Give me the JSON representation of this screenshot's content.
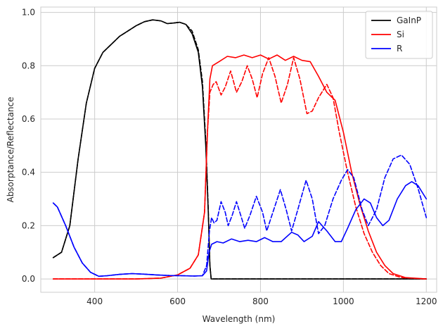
{
  "chart_data": {
    "type": "line",
    "xlabel": "Wavelength (nm)",
    "ylabel": "Absorptance/Reflectance",
    "xlim": [
      270,
      1225
    ],
    "ylim": [
      -0.05,
      1.02
    ],
    "xticks": [
      400,
      600,
      800,
      1000,
      1200
    ],
    "yticks": [
      0.0,
      0.2,
      0.4,
      0.6,
      0.8,
      1.0
    ],
    "xtick_labels": [
      "400",
      "600",
      "800",
      "1000",
      "1200"
    ],
    "ytick_labels": [
      "0.0",
      "0.2",
      "0.4",
      "0.6",
      "0.8",
      "1.0"
    ],
    "grid": true,
    "legend_position": "top-right",
    "legend": [
      {
        "label": "GaInP",
        "color": "#000000"
      },
      {
        "label": "Si",
        "color": "#ff0000"
      },
      {
        "label": "R",
        "color": "#0000ff"
      }
    ],
    "series": [
      {
        "name": "GaInP",
        "color": "#000000",
        "style": "solid",
        "points": [
          [
            300,
            0.08
          ],
          [
            320,
            0.1
          ],
          [
            340,
            0.2
          ],
          [
            360,
            0.45
          ],
          [
            380,
            0.66
          ],
          [
            400,
            0.79
          ],
          [
            420,
            0.85
          ],
          [
            440,
            0.88
          ],
          [
            460,
            0.91
          ],
          [
            480,
            0.93
          ],
          [
            500,
            0.95
          ],
          [
            520,
            0.965
          ],
          [
            540,
            0.972
          ],
          [
            560,
            0.968
          ],
          [
            575,
            0.958
          ],
          [
            590,
            0.96
          ],
          [
            605,
            0.963
          ],
          [
            620,
            0.955
          ],
          [
            635,
            0.92
          ],
          [
            650,
            0.85
          ],
          [
            660,
            0.72
          ],
          [
            668,
            0.5
          ],
          [
            674,
            0.25
          ],
          [
            678,
            0.05
          ],
          [
            681,
            0.0
          ],
          [
            700,
            0.0
          ],
          [
            800,
            0.0
          ],
          [
            900,
            0.0
          ],
          [
            1000,
            0.0
          ],
          [
            1100,
            0.0
          ],
          [
            1200,
            0.0
          ]
        ]
      },
      {
        "name": "GaInP",
        "color": "#000000",
        "style": "dashed",
        "points": [
          [
            300,
            0.08
          ],
          [
            320,
            0.1
          ],
          [
            340,
            0.2
          ],
          [
            360,
            0.45
          ],
          [
            380,
            0.66
          ],
          [
            400,
            0.79
          ],
          [
            420,
            0.85
          ],
          [
            440,
            0.88
          ],
          [
            460,
            0.91
          ],
          [
            480,
            0.93
          ],
          [
            500,
            0.95
          ],
          [
            520,
            0.965
          ],
          [
            540,
            0.972
          ],
          [
            560,
            0.968
          ],
          [
            575,
            0.958
          ],
          [
            590,
            0.96
          ],
          [
            605,
            0.963
          ],
          [
            620,
            0.955
          ],
          [
            635,
            0.93
          ],
          [
            650,
            0.86
          ],
          [
            660,
            0.74
          ],
          [
            668,
            0.52
          ],
          [
            674,
            0.26
          ],
          [
            678,
            0.05
          ],
          [
            681,
            0.0
          ],
          [
            700,
            0.0
          ],
          [
            800,
            0.0
          ],
          [
            900,
            0.0
          ],
          [
            1000,
            0.0
          ],
          [
            1100,
            0.0
          ],
          [
            1200,
            0.0
          ]
        ]
      },
      {
        "name": "Si",
        "color": "#ff0000",
        "style": "solid",
        "points": [
          [
            300,
            0.0
          ],
          [
            500,
            0.0
          ],
          [
            560,
            0.003
          ],
          [
            600,
            0.015
          ],
          [
            630,
            0.04
          ],
          [
            650,
            0.09
          ],
          [
            665,
            0.25
          ],
          [
            672,
            0.55
          ],
          [
            678,
            0.75
          ],
          [
            684,
            0.8
          ],
          [
            700,
            0.815
          ],
          [
            720,
            0.835
          ],
          [
            740,
            0.83
          ],
          [
            760,
            0.84
          ],
          [
            780,
            0.83
          ],
          [
            800,
            0.84
          ],
          [
            820,
            0.825
          ],
          [
            840,
            0.84
          ],
          [
            860,
            0.82
          ],
          [
            880,
            0.835
          ],
          [
            900,
            0.82
          ],
          [
            920,
            0.815
          ],
          [
            940,
            0.76
          ],
          [
            960,
            0.7
          ],
          [
            980,
            0.67
          ],
          [
            1000,
            0.55
          ],
          [
            1020,
            0.4
          ],
          [
            1040,
            0.28
          ],
          [
            1060,
            0.18
          ],
          [
            1080,
            0.1
          ],
          [
            1100,
            0.05
          ],
          [
            1120,
            0.02
          ],
          [
            1150,
            0.005
          ],
          [
            1200,
            0.0
          ]
        ]
      },
      {
        "name": "Si",
        "color": "#ff0000",
        "style": "dashed",
        "points": [
          [
            300,
            0.0
          ],
          [
            500,
            0.0
          ],
          [
            560,
            0.003
          ],
          [
            600,
            0.015
          ],
          [
            630,
            0.04
          ],
          [
            650,
            0.09
          ],
          [
            665,
            0.25
          ],
          [
            672,
            0.55
          ],
          [
            678,
            0.7
          ],
          [
            686,
            0.73
          ],
          [
            693,
            0.74
          ],
          [
            705,
            0.69
          ],
          [
            715,
            0.72
          ],
          [
            728,
            0.78
          ],
          [
            742,
            0.7
          ],
          [
            755,
            0.74
          ],
          [
            768,
            0.8
          ],
          [
            780,
            0.75
          ],
          [
            792,
            0.68
          ],
          [
            805,
            0.77
          ],
          [
            820,
            0.83
          ],
          [
            835,
            0.76
          ],
          [
            850,
            0.66
          ],
          [
            865,
            0.73
          ],
          [
            880,
            0.83
          ],
          [
            895,
            0.75
          ],
          [
            912,
            0.62
          ],
          [
            925,
            0.63
          ],
          [
            940,
            0.68
          ],
          [
            960,
            0.73
          ],
          [
            975,
            0.68
          ],
          [
            990,
            0.55
          ],
          [
            1010,
            0.4
          ],
          [
            1030,
            0.27
          ],
          [
            1050,
            0.17
          ],
          [
            1070,
            0.1
          ],
          [
            1090,
            0.05
          ],
          [
            1110,
            0.02
          ],
          [
            1140,
            0.005
          ],
          [
            1200,
            0.0
          ]
        ]
      },
      {
        "name": "R",
        "color": "#0000ff",
        "style": "solid",
        "points": [
          [
            300,
            0.285
          ],
          [
            310,
            0.27
          ],
          [
            330,
            0.2
          ],
          [
            350,
            0.12
          ],
          [
            370,
            0.06
          ],
          [
            390,
            0.025
          ],
          [
            410,
            0.01
          ],
          [
            430,
            0.012
          ],
          [
            460,
            0.017
          ],
          [
            490,
            0.02
          ],
          [
            520,
            0.018
          ],
          [
            550,
            0.015
          ],
          [
            580,
            0.013
          ],
          [
            610,
            0.012
          ],
          [
            640,
            0.011
          ],
          [
            660,
            0.012
          ],
          [
            670,
            0.03
          ],
          [
            676,
            0.1
          ],
          [
            682,
            0.13
          ],
          [
            695,
            0.14
          ],
          [
            710,
            0.135
          ],
          [
            730,
            0.15
          ],
          [
            750,
            0.14
          ],
          [
            770,
            0.145
          ],
          [
            790,
            0.14
          ],
          [
            810,
            0.155
          ],
          [
            830,
            0.14
          ],
          [
            850,
            0.14
          ],
          [
            875,
            0.175
          ],
          [
            890,
            0.165
          ],
          [
            905,
            0.14
          ],
          [
            925,
            0.16
          ],
          [
            940,
            0.215
          ],
          [
            960,
            0.18
          ],
          [
            980,
            0.14
          ],
          [
            995,
            0.14
          ],
          [
            1010,
            0.19
          ],
          [
            1030,
            0.26
          ],
          [
            1050,
            0.3
          ],
          [
            1065,
            0.285
          ],
          [
            1080,
            0.23
          ],
          [
            1095,
            0.2
          ],
          [
            1110,
            0.22
          ],
          [
            1130,
            0.3
          ],
          [
            1150,
            0.35
          ],
          [
            1165,
            0.365
          ],
          [
            1180,
            0.35
          ],
          [
            1200,
            0.3
          ]
        ]
      },
      {
        "name": "R",
        "color": "#0000ff",
        "style": "dashed",
        "points": [
          [
            300,
            0.285
          ],
          [
            310,
            0.27
          ],
          [
            330,
            0.2
          ],
          [
            350,
            0.12
          ],
          [
            370,
            0.06
          ],
          [
            390,
            0.025
          ],
          [
            410,
            0.01
          ],
          [
            430,
            0.012
          ],
          [
            460,
            0.017
          ],
          [
            490,
            0.02
          ],
          [
            520,
            0.018
          ],
          [
            550,
            0.015
          ],
          [
            580,
            0.013
          ],
          [
            610,
            0.012
          ],
          [
            640,
            0.011
          ],
          [
            660,
            0.012
          ],
          [
            670,
            0.05
          ],
          [
            677,
            0.18
          ],
          [
            682,
            0.23
          ],
          [
            688,
            0.21
          ],
          [
            695,
            0.22
          ],
          [
            705,
            0.29
          ],
          [
            715,
            0.25
          ],
          [
            722,
            0.2
          ],
          [
            732,
            0.24
          ],
          [
            742,
            0.29
          ],
          [
            752,
            0.24
          ],
          [
            762,
            0.19
          ],
          [
            775,
            0.24
          ],
          [
            790,
            0.31
          ],
          [
            805,
            0.25
          ],
          [
            815,
            0.18
          ],
          [
            830,
            0.25
          ],
          [
            848,
            0.335
          ],
          [
            862,
            0.26
          ],
          [
            875,
            0.18
          ],
          [
            890,
            0.26
          ],
          [
            910,
            0.37
          ],
          [
            925,
            0.3
          ],
          [
            940,
            0.17
          ],
          [
            955,
            0.2
          ],
          [
            975,
            0.3
          ],
          [
            995,
            0.37
          ],
          [
            1010,
            0.41
          ],
          [
            1025,
            0.38
          ],
          [
            1045,
            0.26
          ],
          [
            1060,
            0.2
          ],
          [
            1080,
            0.26
          ],
          [
            1100,
            0.38
          ],
          [
            1120,
            0.45
          ],
          [
            1140,
            0.465
          ],
          [
            1160,
            0.43
          ],
          [
            1180,
            0.34
          ],
          [
            1200,
            0.23
          ]
        ]
      }
    ]
  }
}
